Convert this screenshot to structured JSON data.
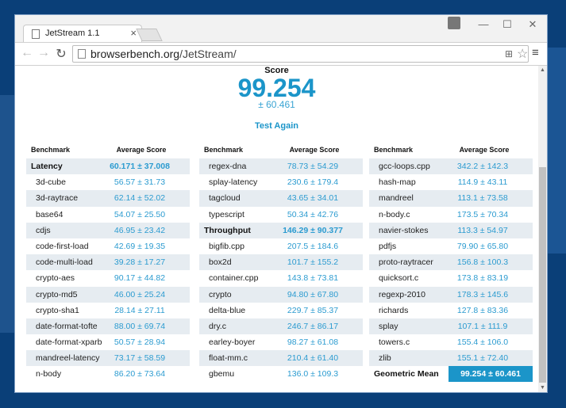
{
  "browser": {
    "tab_title": "JetStream 1.1",
    "tab_close": "×",
    "url_host": "browserbench.org",
    "url_path": "/JetStream/",
    "minimize": "—",
    "maximize": "☐",
    "close": "✕",
    "back": "←",
    "forward": "→",
    "reload": "↻",
    "star": "☆",
    "menu": "≡"
  },
  "page": {
    "score_label": "Score",
    "score_value": "99.254",
    "score_error": "± 60.461",
    "test_again": "Test Again",
    "col_header_name": "Benchmark",
    "col_header_score": "Average Score"
  },
  "columns": [
    [
      {
        "name": "Latency",
        "score": "60.171 ± 37.008",
        "group": true
      },
      {
        "name": "3d-cube",
        "score": "56.57 ± 31.73"
      },
      {
        "name": "3d-raytrace",
        "score": "62.14 ± 52.02"
      },
      {
        "name": "base64",
        "score": "54.07 ± 25.50"
      },
      {
        "name": "cdjs",
        "score": "46.95 ± 23.42"
      },
      {
        "name": "code-first-load",
        "score": "42.69 ± 19.35"
      },
      {
        "name": "code-multi-load",
        "score": "39.28 ± 17.27"
      },
      {
        "name": "crypto-aes",
        "score": "90.17 ± 44.82"
      },
      {
        "name": "crypto-md5",
        "score": "46.00 ± 25.24"
      },
      {
        "name": "crypto-sha1",
        "score": "28.14 ± 27.11"
      },
      {
        "name": "date-format-tofte",
        "score": "88.00 ± 69.74"
      },
      {
        "name": "date-format-xparb",
        "score": "50.57 ± 28.94"
      },
      {
        "name": "mandreel-latency",
        "score": "73.17 ± 58.59"
      },
      {
        "name": "n-body",
        "score": "86.20 ± 73.64"
      }
    ],
    [
      {
        "name": "regex-dna",
        "score": "78.73 ± 54.29"
      },
      {
        "name": "splay-latency",
        "score": "230.6 ± 179.4"
      },
      {
        "name": "tagcloud",
        "score": "43.65 ± 34.01"
      },
      {
        "name": "typescript",
        "score": "50.34 ± 42.76"
      },
      {
        "name": "Throughput",
        "score": "146.29 ± 90.377",
        "group": true
      },
      {
        "name": "bigfib.cpp",
        "score": "207.5 ± 184.6"
      },
      {
        "name": "box2d",
        "score": "101.7 ± 155.2"
      },
      {
        "name": "container.cpp",
        "score": "143.8 ± 73.81"
      },
      {
        "name": "crypto",
        "score": "94.80 ± 67.80"
      },
      {
        "name": "delta-blue",
        "score": "229.7 ± 85.37"
      },
      {
        "name": "dry.c",
        "score": "246.7 ± 86.17"
      },
      {
        "name": "earley-boyer",
        "score": "98.27 ± 61.08"
      },
      {
        "name": "float-mm.c",
        "score": "210.4 ± 61.40"
      },
      {
        "name": "gbemu",
        "score": "136.0 ± 109.3"
      }
    ],
    [
      {
        "name": "gcc-loops.cpp",
        "score": "342.2 ± 142.3"
      },
      {
        "name": "hash-map",
        "score": "114.9 ± 43.11"
      },
      {
        "name": "mandreel",
        "score": "113.1 ± 73.58"
      },
      {
        "name": "n-body.c",
        "score": "173.5 ± 70.34"
      },
      {
        "name": "navier-stokes",
        "score": "113.3 ± 54.97"
      },
      {
        "name": "pdfjs",
        "score": "79.90 ± 65.80"
      },
      {
        "name": "proto-raytracer",
        "score": "156.8 ± 100.3"
      },
      {
        "name": "quicksort.c",
        "score": "173.8 ± 83.19"
      },
      {
        "name": "regexp-2010",
        "score": "178.3 ± 145.6"
      },
      {
        "name": "richards",
        "score": "127.8 ± 83.36"
      },
      {
        "name": "splay",
        "score": "107.1 ± 111.9"
      },
      {
        "name": "towers.c",
        "score": "155.4 ± 106.0"
      },
      {
        "name": "zlib",
        "score": "155.1 ± 72.40"
      },
      {
        "name": "Geometric Mean",
        "score": "99.254 ± 60.461",
        "group": true,
        "geo": true
      }
    ]
  ]
}
